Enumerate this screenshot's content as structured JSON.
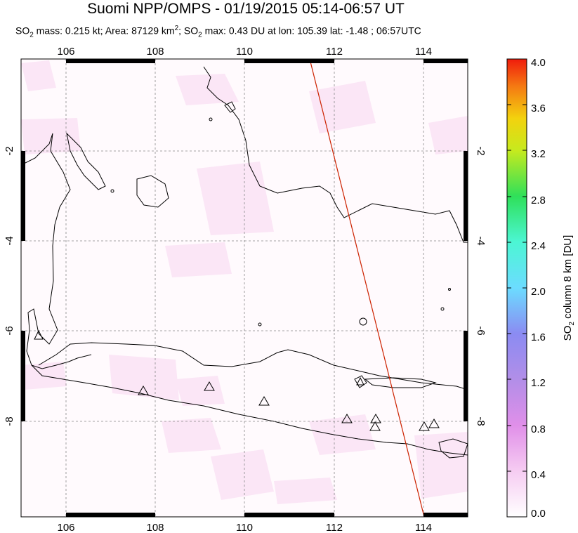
{
  "header": {
    "title": "Suomi NPP/OMPS - 01/19/2015 05:14-06:57 UT",
    "subtitle_prefix": "SO",
    "subtitle_mass": " mass: 0.215 kt; Area: 87129 km",
    "subtitle_area_exp": "2",
    "subtitle_max": "; SO",
    "subtitle_rest": " max: 0.43 DU at lon: 105.39 lat: -1.48 ; 06:57UTC"
  },
  "map": {
    "lon_ticks_top": [
      "106",
      "108",
      "110",
      "112",
      "114"
    ],
    "lon_ticks_bottom": [
      "106",
      "108",
      "110",
      "112",
      "114"
    ],
    "lat_ticks": [
      "-2",
      "-4",
      "-6",
      "-8"
    ],
    "extent": {
      "lon": [
        105.0,
        115.0
      ],
      "lat": [
        -10.2,
        0.0
      ]
    },
    "orbit_track_color": "#cc2200",
    "volcano_markers": 11
  },
  "colorbar": {
    "label_main": "SO",
    "label_sub": "2",
    "label_rest": " column 8 km [DU]",
    "ticks": [
      "4.0",
      "3.6",
      "3.2",
      "2.8",
      "2.4",
      "2.0",
      "1.6",
      "1.2",
      "0.8",
      "0.4",
      "0.0"
    ],
    "range": [
      0.0,
      4.0
    ]
  }
}
